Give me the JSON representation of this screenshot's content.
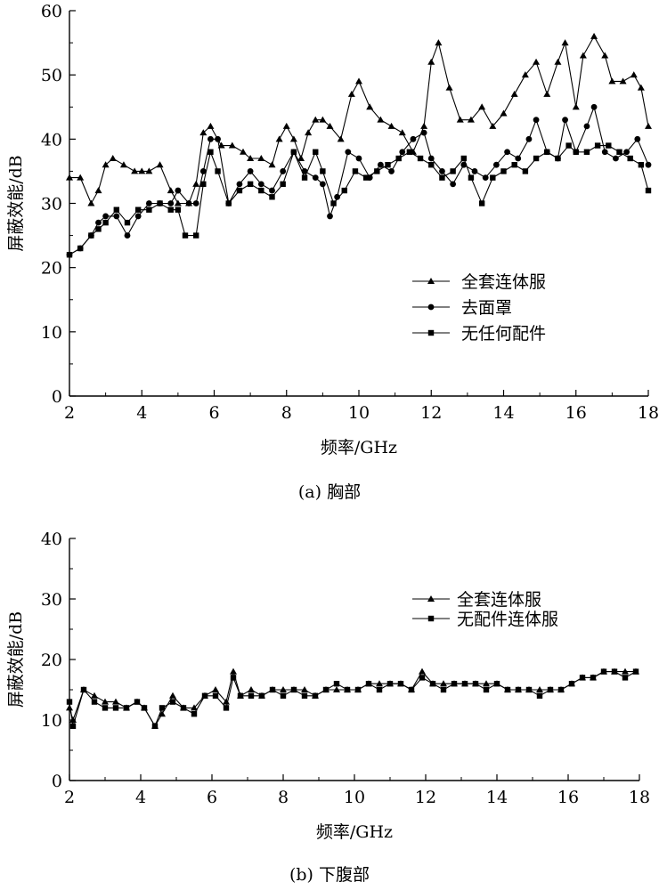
{
  "chart_data": [
    {
      "type": "line",
      "caption": "(a) 胸部",
      "xlabel": "频率/GHz",
      "ylabel": "屏蔽效能/dB",
      "xlim": [
        2,
        18
      ],
      "ylim": [
        0,
        60
      ],
      "xticks": [
        2,
        4,
        6,
        8,
        10,
        12,
        14,
        16,
        18
      ],
      "yticks": [
        0,
        10,
        20,
        30,
        40,
        50,
        60
      ],
      "grid": false,
      "legend_position": "right-middle",
      "series": [
        {
          "name": "全套连体服",
          "marker": "triangle",
          "x": [
            2.0,
            2.3,
            2.6,
            2.8,
            3.0,
            3.2,
            3.5,
            3.8,
            4.0,
            4.2,
            4.5,
            4.8,
            5.0,
            5.3,
            5.5,
            5.7,
            5.9,
            6.2,
            6.5,
            6.8,
            7.0,
            7.3,
            7.6,
            7.8,
            8.0,
            8.2,
            8.4,
            8.6,
            8.8,
            9.0,
            9.2,
            9.5,
            9.8,
            10.0,
            10.3,
            10.6,
            10.9,
            11.2,
            11.5,
            11.8,
            12.0,
            12.2,
            12.5,
            12.8,
            13.1,
            13.4,
            13.7,
            14.0,
            14.3,
            14.6,
            14.9,
            15.2,
            15.5,
            15.7,
            16.0,
            16.2,
            16.5,
            16.8,
            17.0,
            17.3,
            17.6,
            17.8,
            18.0
          ],
          "values": [
            34,
            34,
            30,
            32,
            36,
            37,
            36,
            35,
            35,
            35,
            36,
            32,
            30,
            30,
            33,
            41,
            42,
            39,
            39,
            38,
            37,
            37,
            36,
            40,
            42,
            40,
            37,
            41,
            43,
            43,
            42,
            40,
            47,
            49,
            45,
            43,
            42,
            41,
            38,
            42,
            52,
            55,
            48,
            43,
            43,
            45,
            42,
            44,
            47,
            50,
            52,
            47,
            52,
            55,
            45,
            53,
            56,
            53,
            49,
            49,
            50,
            48,
            42
          ]
        },
        {
          "name": "去面罩",
          "marker": "circle",
          "x": [
            2.0,
            2.3,
            2.6,
            2.8,
            3.0,
            3.3,
            3.6,
            3.9,
            4.2,
            4.5,
            4.8,
            5.0,
            5.3,
            5.5,
            5.7,
            5.9,
            6.1,
            6.4,
            6.7,
            7.0,
            7.3,
            7.6,
            7.9,
            8.2,
            8.5,
            8.8,
            9.0,
            9.2,
            9.4,
            9.7,
            10.0,
            10.3,
            10.6,
            10.9,
            11.2,
            11.5,
            11.8,
            12.0,
            12.3,
            12.6,
            12.9,
            13.2,
            13.5,
            13.8,
            14.1,
            14.4,
            14.7,
            14.9,
            15.2,
            15.5,
            15.7,
            16.0,
            16.3,
            16.5,
            16.8,
            17.1,
            17.4,
            17.7,
            18.0
          ],
          "values": [
            22,
            23,
            25,
            27,
            28,
            28,
            25,
            28,
            30,
            30,
            30,
            32,
            30,
            30,
            35,
            40,
            40,
            30,
            33,
            35,
            33,
            32,
            35,
            38,
            35,
            34,
            33,
            28,
            31,
            38,
            37,
            34,
            36,
            35,
            38,
            40,
            41,
            37,
            35,
            33,
            36,
            35,
            34,
            36,
            38,
            37,
            40,
            43,
            38,
            37,
            43,
            38,
            42,
            45,
            38,
            37,
            38,
            40,
            36
          ]
        },
        {
          "name": "无任何配件",
          "marker": "square",
          "x": [
            2.0,
            2.3,
            2.6,
            2.8,
            3.0,
            3.3,
            3.6,
            3.9,
            4.2,
            4.5,
            4.8,
            5.0,
            5.2,
            5.5,
            5.7,
            5.9,
            6.1,
            6.4,
            6.7,
            7.0,
            7.3,
            7.6,
            7.9,
            8.2,
            8.5,
            8.8,
            9.0,
            9.3,
            9.6,
            9.9,
            10.2,
            10.5,
            10.8,
            11.1,
            11.4,
            11.7,
            12.0,
            12.3,
            12.6,
            12.9,
            13.1,
            13.4,
            13.7,
            14.0,
            14.3,
            14.6,
            14.9,
            15.2,
            15.5,
            15.8,
            16.0,
            16.3,
            16.6,
            16.9,
            17.2,
            17.5,
            17.8,
            18.0
          ],
          "values": [
            22,
            23,
            25,
            26,
            27,
            29,
            27,
            29,
            29,
            30,
            29,
            29,
            25,
            25,
            33,
            38,
            35,
            30,
            32,
            33,
            32,
            31,
            33,
            38,
            34,
            38,
            35,
            30,
            32,
            35,
            34,
            35,
            36,
            37,
            38,
            37,
            36,
            34,
            35,
            37,
            34,
            30,
            34,
            35,
            36,
            35,
            37,
            38,
            37,
            39,
            38,
            38,
            39,
            39,
            38,
            37,
            36,
            32
          ]
        }
      ]
    },
    {
      "type": "line",
      "caption": "(b) 下腹部",
      "xlabel": "频率/GHz",
      "ylabel": "屏蔽效能/dB",
      "xlim": [
        2,
        18
      ],
      "ylim": [
        0,
        40
      ],
      "xticks": [
        2,
        4,
        6,
        8,
        10,
        12,
        14,
        16,
        18
      ],
      "yticks": [
        0,
        10,
        20,
        30,
        40
      ],
      "grid": false,
      "legend_position": "top-right",
      "series": [
        {
          "name": "全套连体服",
          "marker": "triangle",
          "x": [
            2.0,
            2.1,
            2.4,
            2.7,
            3.0,
            3.3,
            3.6,
            3.9,
            4.1,
            4.4,
            4.6,
            4.9,
            5.2,
            5.5,
            5.8,
            6.1,
            6.4,
            6.6,
            6.8,
            7.1,
            7.4,
            7.7,
            8.0,
            8.3,
            8.6,
            8.9,
            9.2,
            9.5,
            9.8,
            10.1,
            10.4,
            10.7,
            11.0,
            11.3,
            11.6,
            11.9,
            12.2,
            12.5,
            12.8,
            13.1,
            13.4,
            13.7,
            14.0,
            14.3,
            14.6,
            14.9,
            15.2,
            15.5,
            15.8,
            16.1,
            16.4,
            16.7,
            17.0,
            17.3,
            17.6,
            17.9
          ],
          "values": [
            12,
            10,
            15,
            14,
            13,
            13,
            12,
            13,
            12,
            9,
            11,
            14,
            12,
            12,
            14,
            15,
            13,
            18,
            14,
            15,
            14,
            15,
            15,
            15,
            15,
            14,
            15,
            15,
            15,
            15,
            16,
            16,
            16,
            16,
            15,
            18,
            16,
            16,
            16,
            16,
            16,
            16,
            16,
            15,
            15,
            15,
            15,
            15,
            15,
            16,
            17,
            17,
            18,
            18,
            18,
            18
          ]
        },
        {
          "name": "无配件连体服",
          "marker": "square",
          "x": [
            2.0,
            2.1,
            2.4,
            2.7,
            3.0,
            3.3,
            3.6,
            3.9,
            4.1,
            4.4,
            4.6,
            4.9,
            5.2,
            5.5,
            5.8,
            6.1,
            6.4,
            6.6,
            6.8,
            7.1,
            7.4,
            7.7,
            8.0,
            8.3,
            8.6,
            8.9,
            9.2,
            9.5,
            9.8,
            10.1,
            10.4,
            10.7,
            11.0,
            11.3,
            11.6,
            11.9,
            12.2,
            12.5,
            12.8,
            13.1,
            13.4,
            13.7,
            14.0,
            14.3,
            14.6,
            14.9,
            15.2,
            15.5,
            15.8,
            16.1,
            16.4,
            16.7,
            17.0,
            17.3,
            17.6,
            17.9
          ],
          "values": [
            13,
            9,
            15,
            13,
            12,
            12,
            12,
            13,
            12,
            9,
            12,
            13,
            12,
            11,
            14,
            14,
            12,
            17,
            14,
            14,
            14,
            15,
            14,
            15,
            14,
            14,
            15,
            16,
            15,
            15,
            16,
            15,
            16,
            16,
            15,
            17,
            16,
            15,
            16,
            16,
            16,
            15,
            16,
            15,
            15,
            15,
            14,
            15,
            15,
            16,
            17,
            17,
            18,
            18,
            17,
            18
          ]
        }
      ]
    }
  ]
}
